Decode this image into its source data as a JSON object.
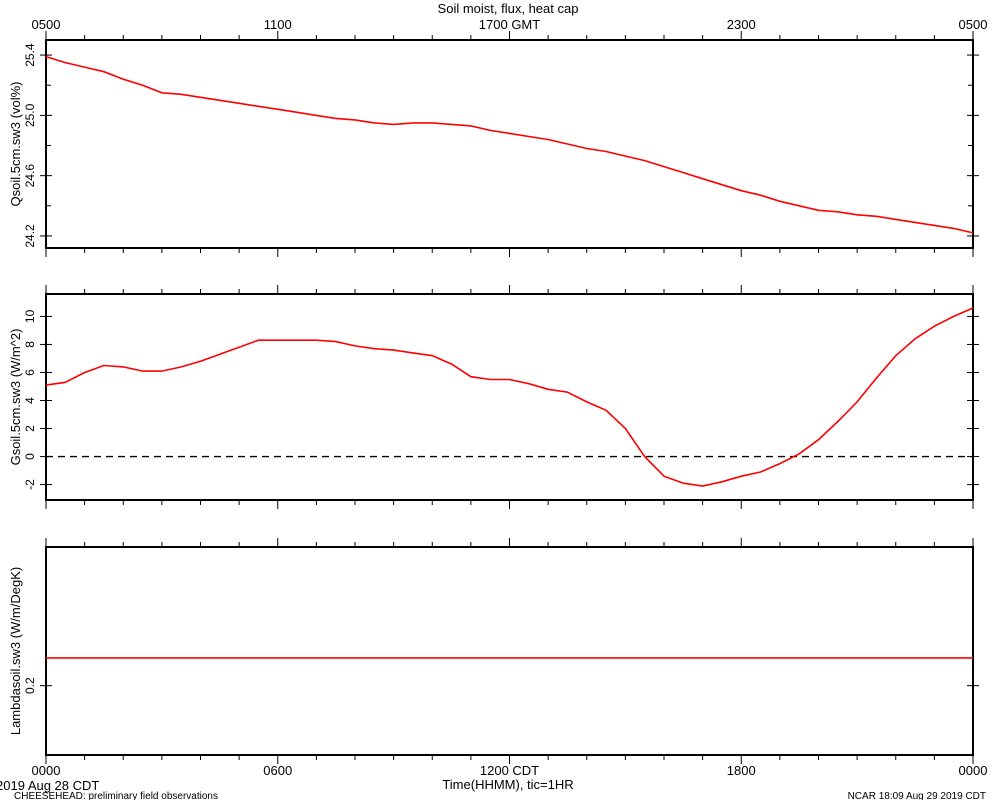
{
  "page": {
    "title": "Soil moist, flux, heat cap",
    "top_axis_unit": "GMT",
    "bottom_axis_unit": "CDT",
    "xlabel": "Time(HHMM), tic=1HR",
    "date_label": "2019 Aug 28 CDT",
    "footer_left": "CHEESEHEAD: preliminary field observations",
    "footer_right": "NCAR 18:09 Aug 29 2019 CDT"
  },
  "colors": {
    "series": "#ff0000",
    "axes": "#000000",
    "background": "#ffffff"
  },
  "chart_data": [
    {
      "type": "line",
      "title": "Soil moist, flux, heat cap",
      "xlabel": "",
      "ylabel": "Qsoil.5cm.sw3 (vol%)",
      "xlim": [
        0,
        24
      ],
      "ylim": [
        24.12,
        25.5
      ],
      "y_ticks": [
        24.2,
        24.6,
        25.0,
        25.4
      ],
      "y_minor_ticks": [
        24.4,
        24.8,
        25.2
      ],
      "x_top_ticks": [
        0,
        6,
        12,
        18,
        24
      ],
      "x_top_tick_labels": [
        "0500",
        "1100",
        "1700 GMT",
        "2300",
        "0500"
      ],
      "grid": false,
      "series": [
        {
          "x": [
            0,
            0.5,
            1,
            1.5,
            2,
            2.5,
            3,
            3.5,
            4,
            4.5,
            5,
            5.5,
            6,
            6.5,
            7,
            7.5,
            8,
            8.5,
            9,
            9.5,
            10,
            10.5,
            11,
            11.5,
            12,
            12.5,
            13,
            13.5,
            14,
            14.5,
            15,
            15.5,
            16,
            16.5,
            17,
            17.5,
            18,
            18.5,
            19,
            19.5,
            20,
            20.5,
            21,
            21.5,
            22,
            22.5,
            23,
            23.5,
            24
          ],
          "y": [
            25.39,
            25.35,
            25.32,
            25.29,
            25.24,
            25.2,
            25.15,
            25.14,
            25.12,
            25.1,
            25.08,
            25.06,
            25.04,
            25.02,
            25.0,
            24.98,
            24.97,
            24.95,
            24.94,
            24.95,
            24.95,
            24.94,
            24.93,
            24.9,
            24.88,
            24.86,
            24.84,
            24.81,
            24.78,
            24.76,
            24.73,
            24.7,
            24.66,
            24.62,
            24.58,
            24.54,
            24.5,
            24.47,
            24.43,
            24.4,
            24.37,
            24.36,
            24.34,
            24.33,
            24.31,
            24.29,
            24.27,
            24.25,
            24.22
          ]
        }
      ]
    },
    {
      "type": "line",
      "xlabel": "",
      "ylabel": "Gsoil.5cm.sw3 (W/m^2)",
      "xlim": [
        0,
        24
      ],
      "ylim": [
        -3.1,
        11.6
      ],
      "y_ticks": [
        -2,
        0,
        2,
        4,
        6,
        8,
        10
      ],
      "reference_line": 0,
      "grid": false,
      "series": [
        {
          "x": [
            0,
            0.5,
            1,
            1.5,
            2,
            2.5,
            3,
            3.5,
            4,
            4.5,
            5,
            5.5,
            6,
            6.5,
            7,
            7.5,
            8,
            8.5,
            9,
            9.5,
            10,
            10.5,
            11,
            11.5,
            12,
            12.5,
            13,
            13.5,
            14,
            14.5,
            15,
            15.5,
            16,
            16.5,
            17,
            17.5,
            18,
            18.5,
            19,
            19.5,
            20,
            20.5,
            21,
            21.5,
            22,
            22.5,
            23,
            23.5,
            24
          ],
          "y": [
            5.1,
            5.3,
            6.0,
            6.5,
            6.4,
            6.1,
            6.1,
            6.4,
            6.8,
            7.3,
            7.8,
            8.3,
            8.3,
            8.3,
            8.3,
            8.2,
            7.9,
            7.7,
            7.6,
            7.4,
            7.2,
            6.6,
            5.7,
            5.5,
            5.5,
            5.2,
            4.8,
            4.6,
            3.9,
            3.3,
            2.0,
            0.0,
            -1.4,
            -1.9,
            -2.1,
            -1.8,
            -1.4,
            -1.1,
            -0.5,
            0.2,
            1.2,
            2.5,
            3.9,
            5.6,
            7.2,
            8.4,
            9.3,
            10.0,
            10.6
          ]
        }
      ]
    },
    {
      "type": "line",
      "xlabel": "Time(HHMM), tic=1HR",
      "ylabel": "Lambdasoil.sw3 (W/m/DegK)",
      "xlim": [
        0,
        24
      ],
      "ylim": [
        0.1,
        0.4
      ],
      "y_ticks": [
        0.2
      ],
      "x_ticks": [
        0,
        6,
        12,
        18,
        24
      ],
      "x_tick_labels": [
        "0000",
        "0600",
        "1200 CDT",
        "1800",
        "0000"
      ],
      "grid": false,
      "series": [
        {
          "x": [
            0,
            24
          ],
          "y": [
            0.24,
            0.24
          ]
        }
      ]
    }
  ]
}
